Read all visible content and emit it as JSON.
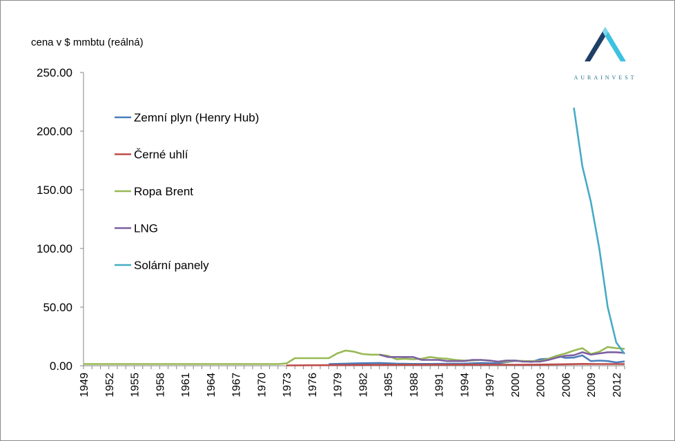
{
  "chart_data": {
    "type": "line",
    "title": "",
    "ylabel": "cena v $ mmbtu (reálná)",
    "xlabel": "",
    "ylim": [
      0,
      250
    ],
    "xlim": [
      1949,
      2013
    ],
    "grid": false,
    "legend_position": "left-inside",
    "x_tick_labels": [
      "1949",
      "1952",
      "1955",
      "1958",
      "1961",
      "1964",
      "1967",
      "1970",
      "1973",
      "1976",
      "1979",
      "1982",
      "1985",
      "1988",
      "1991",
      "1994",
      "1997",
      "2000",
      "2003",
      "2006",
      "2009",
      "2012"
    ],
    "y_tick_labels": [
      "0.00",
      "50.00",
      "100.00",
      "150.00",
      "200.00",
      "250.00"
    ],
    "series": [
      {
        "name": "Zemní plyn (Henry Hub)",
        "color": "#4a7ebb",
        "points": [
          [
            1978,
            1.5
          ],
          [
            1980,
            1.8
          ],
          [
            1982,
            2.2
          ],
          [
            1984,
            2.4
          ],
          [
            1986,
            1.8
          ],
          [
            1988,
            1.6
          ],
          [
            1990,
            1.6
          ],
          [
            1992,
            1.7
          ],
          [
            1994,
            1.8
          ],
          [
            1996,
            2.4
          ],
          [
            1998,
            2.1
          ],
          [
            2000,
            4.1
          ],
          [
            2001,
            4.0
          ],
          [
            2002,
            3.3
          ],
          [
            2003,
            5.5
          ],
          [
            2004,
            6.0
          ],
          [
            2005,
            8.6
          ],
          [
            2006,
            6.7
          ],
          [
            2007,
            7.0
          ],
          [
            2008,
            8.9
          ],
          [
            2009,
            4.0
          ],
          [
            2010,
            4.4
          ],
          [
            2011,
            4.0
          ],
          [
            2012,
            2.8
          ],
          [
            2013,
            3.7
          ]
        ]
      },
      {
        "name": "Černé uhlí",
        "color": "#be4b48",
        "points": [
          [
            1973,
            0.3
          ],
          [
            1978,
            0.5
          ],
          [
            1985,
            0.8
          ],
          [
            1990,
            0.9
          ],
          [
            1995,
            1.0
          ],
          [
            2000,
            0.9
          ],
          [
            2003,
            1.0
          ],
          [
            2006,
            1.3
          ],
          [
            2008,
            1.6
          ],
          [
            2010,
            1.5
          ],
          [
            2013,
            1.5
          ]
        ]
      },
      {
        "name": "Ropa Brent",
        "color": "#98b954",
        "points": [
          [
            1949,
            1.5
          ],
          [
            1972,
            1.5
          ],
          [
            1973,
            2.0
          ],
          [
            1974,
            6.5
          ],
          [
            1975,
            6.5
          ],
          [
            1976,
            6.5
          ],
          [
            1977,
            6.5
          ],
          [
            1978,
            6.5
          ],
          [
            1979,
            10.5
          ],
          [
            1980,
            13.0
          ],
          [
            1981,
            12.0
          ],
          [
            1982,
            10.0
          ],
          [
            1983,
            9.5
          ],
          [
            1984,
            9.5
          ],
          [
            1985,
            8.5
          ],
          [
            1986,
            5.5
          ],
          [
            1987,
            6.0
          ],
          [
            1988,
            5.5
          ],
          [
            1989,
            6.0
          ],
          [
            1990,
            7.5
          ],
          [
            1991,
            6.5
          ],
          [
            1992,
            6.0
          ],
          [
            1993,
            5.0
          ],
          [
            1994,
            4.5
          ],
          [
            1995,
            4.5
          ],
          [
            1996,
            5.0
          ],
          [
            1997,
            4.5
          ],
          [
            1998,
            3.5
          ],
          [
            1999,
            3.5
          ],
          [
            2000,
            4.5
          ],
          [
            2001,
            4.0
          ],
          [
            2002,
            4.0
          ],
          [
            2003,
            4.0
          ],
          [
            2004,
            6.0
          ],
          [
            2005,
            8.5
          ],
          [
            2006,
            10.5
          ],
          [
            2007,
            13.0
          ],
          [
            2008,
            15.0
          ],
          [
            2009,
            10.0
          ],
          [
            2010,
            12.0
          ],
          [
            2011,
            16.0
          ],
          [
            2012,
            15.0
          ],
          [
            2013,
            14.5
          ]
        ]
      },
      {
        "name": "LNG",
        "color": "#7d60a0",
        "points": [
          [
            1984,
            9.5
          ],
          [
            1985,
            7.5
          ],
          [
            1986,
            7.5
          ],
          [
            1987,
            7.5
          ],
          [
            1988,
            7.5
          ],
          [
            1989,
            5.0
          ],
          [
            1990,
            5.0
          ],
          [
            1991,
            5.0
          ],
          [
            1992,
            4.0
          ],
          [
            1993,
            4.0
          ],
          [
            1994,
            4.0
          ],
          [
            1995,
            5.0
          ],
          [
            1996,
            5.0
          ],
          [
            1997,
            4.5
          ],
          [
            1998,
            3.5
          ],
          [
            1999,
            4.5
          ],
          [
            2000,
            4.5
          ],
          [
            2001,
            3.5
          ],
          [
            2002,
            3.5
          ],
          [
            2003,
            3.5
          ],
          [
            2004,
            5.0
          ],
          [
            2005,
            7.0
          ],
          [
            2006,
            8.5
          ],
          [
            2007,
            9.0
          ],
          [
            2008,
            11.5
          ],
          [
            2009,
            9.5
          ],
          [
            2010,
            10.5
          ],
          [
            2011,
            11.5
          ],
          [
            2012,
            11.5
          ],
          [
            2013,
            11.0
          ]
        ]
      },
      {
        "name": "Solární panely",
        "color": "#46aac5",
        "points": [
          [
            2007,
            220
          ],
          [
            2008,
            170
          ],
          [
            2009,
            140
          ],
          [
            2010,
            100
          ],
          [
            2011,
            50
          ],
          [
            2012,
            20
          ],
          [
            2013,
            10
          ]
        ]
      }
    ]
  },
  "logo": {
    "text": "AURAINVEST"
  }
}
